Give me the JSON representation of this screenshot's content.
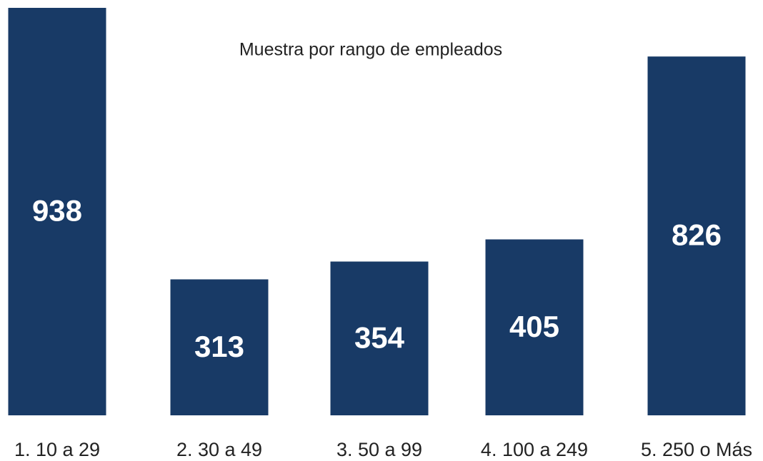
{
  "chart_data": {
    "type": "bar",
    "title": "Muestra por rango de empleados",
    "categories": [
      "1. 10 a 29",
      "2. 30 a 49",
      "3. 50 a 99",
      "4. 100 a 249",
      "5. 250 o Más"
    ],
    "values": [
      938,
      313,
      354,
      405,
      826
    ],
    "color": "#183a66"
  }
}
